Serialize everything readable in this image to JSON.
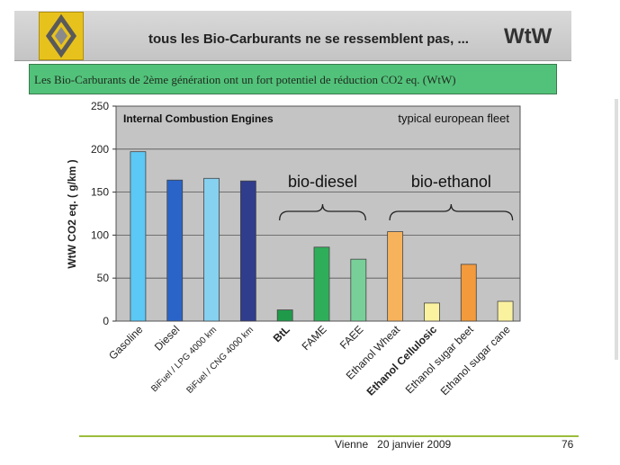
{
  "header": {
    "title": "tous les Bio-Carburants ne se ressemblent pas, ...",
    "tag": "WtW",
    "logo_icon": "renault-diamond-logo"
  },
  "banner": {
    "text": "Les Bio-Carburants de 2ème génération ont un fort potentiel de réduction CO2 eq. (WtW)",
    "color": "#52c27a"
  },
  "chart_data": {
    "type": "bar",
    "title": "Internal Combustion Engines",
    "subtitle": "typical european fleet",
    "ylabel": "WtW CO2 eq. ( g/km )",
    "ylim": [
      0,
      250
    ],
    "yticks": [
      0,
      50,
      100,
      150,
      200,
      250
    ],
    "grid": true,
    "categories": [
      "Gasoline",
      "Diesel",
      "BiFuel / LPG 4000 km",
      "BiFuel / CNG 4000 km",
      "BtL",
      "FAME",
      "FAEE",
      "Ethanol Wheat",
      "Ethanol Cellulosic",
      "Ethanol sugar beet",
      "Ethanol sugar cane"
    ],
    "values": [
      197,
      164,
      166,
      163,
      13,
      86,
      72,
      104,
      21,
      66,
      23
    ],
    "bold_categories": [
      "BtL",
      "Ethanol Cellulosic"
    ],
    "colors": [
      "#5bc8f5",
      "#2a64c8",
      "#86d0f0",
      "#303c8c",
      "#1f9a4a",
      "#2fae5a",
      "#78d098",
      "#f7b35c",
      "#fbf2a0",
      "#f29a3c",
      "#fbf2a0"
    ],
    "groups": [
      {
        "label": "bio-diesel",
        "from": 4,
        "to": 6
      },
      {
        "label": "bio-ethanol",
        "from": 7,
        "to": 10
      }
    ]
  },
  "footer": {
    "event": "Vienne",
    "date": "20 janvier 2009",
    "page": "76"
  }
}
